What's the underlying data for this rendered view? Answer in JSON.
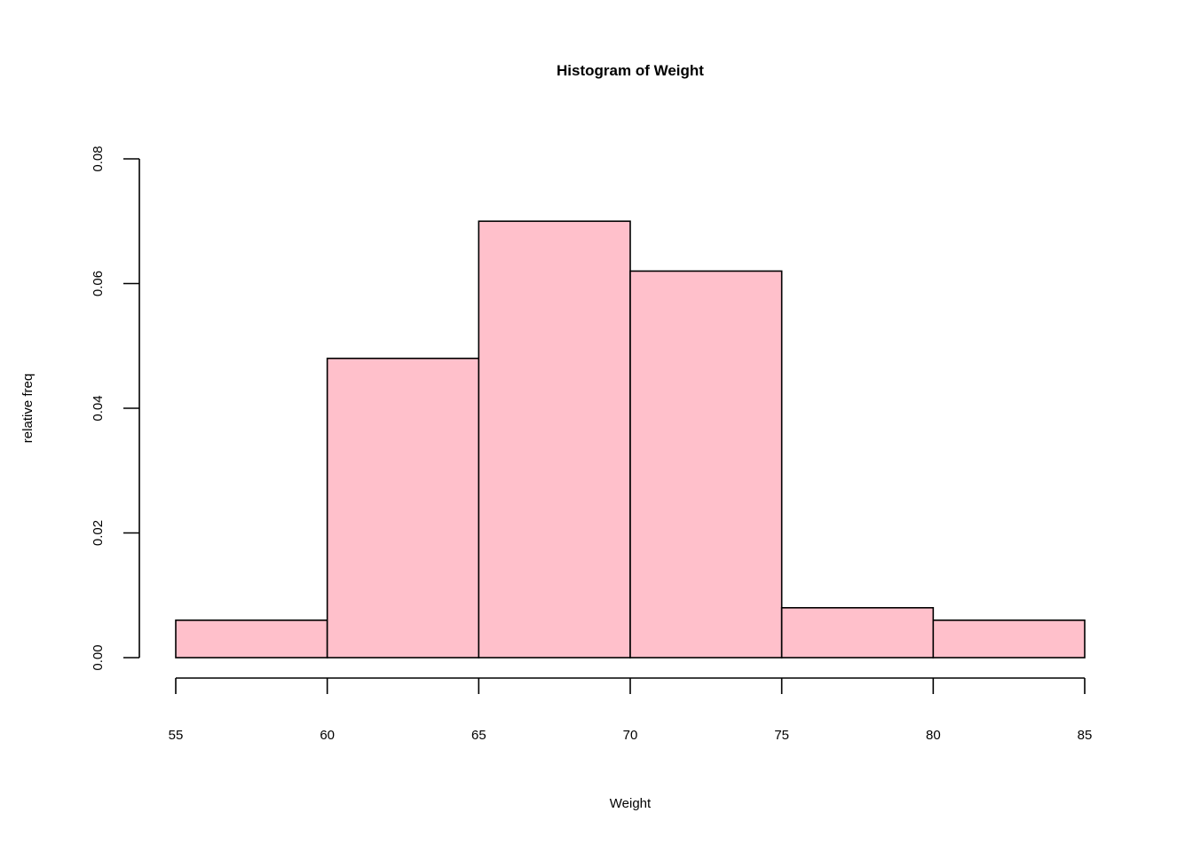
{
  "chart_data": {
    "type": "bar",
    "title": "Histogram of Weight",
    "xlabel": "Weight",
    "ylabel": "relative freq",
    "bins": [
      {
        "from": 55,
        "to": 60,
        "value": 0.006
      },
      {
        "from": 60,
        "to": 65,
        "value": 0.048
      },
      {
        "from": 65,
        "to": 70,
        "value": 0.07
      },
      {
        "from": 70,
        "to": 75,
        "value": 0.062
      },
      {
        "from": 75,
        "to": 80,
        "value": 0.008
      },
      {
        "from": 80,
        "to": 85,
        "value": 0.006
      }
    ],
    "xlim": [
      55,
      85
    ],
    "ylim": [
      0,
      0.08
    ],
    "x_ticks": [
      "55",
      "60",
      "65",
      "70",
      "75",
      "80",
      "85"
    ],
    "y_ticks": [
      "0.00",
      "0.02",
      "0.04",
      "0.06",
      "0.08"
    ],
    "bar_color": "#ffc0cb",
    "edge_color": "#000000",
    "grid": false
  }
}
